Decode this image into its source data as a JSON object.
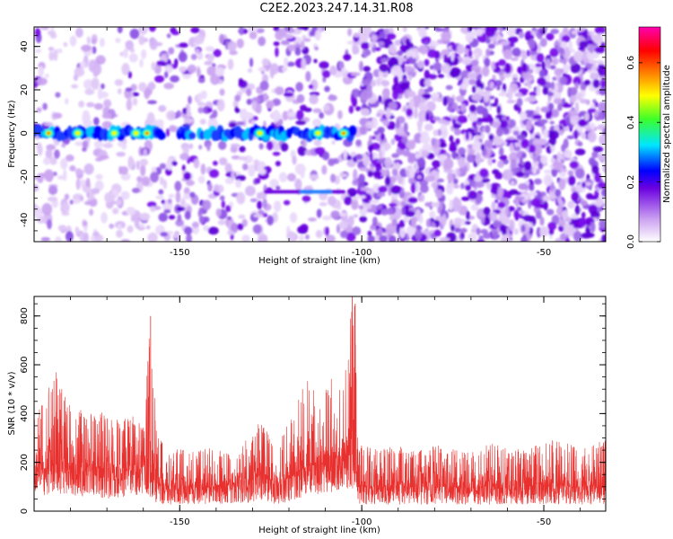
{
  "title": "C2E2.2023.247.14.31.R08",
  "colors": {
    "snr_line": "#e8302e",
    "axis": "#000000",
    "background": "#ffffff"
  },
  "chart_data": [
    {
      "type": "heatmap",
      "xlabel": "Height of straight line (km)",
      "ylabel": "Frequency (Hz)",
      "xlim": [
        -190,
        -33
      ],
      "ylim": [
        -50,
        49
      ],
      "xticks": [
        -150,
        -100,
        -50
      ],
      "yticks": [
        -40,
        -20,
        0,
        20,
        40
      ],
      "colorbar": {
        "label": "Normalized spectral amplitude",
        "range": [
          0,
          0.72
        ],
        "ticks": [
          0.0,
          0.2,
          0.4,
          0.6
        ],
        "colormap": "white-purple-blue-cyan-green-yellow-red-magenta"
      },
      "features": [
        {
          "name": "strong band",
          "freq_hz": 0,
          "x_range": [
            -190,
            -102
          ],
          "max_amplitude": 0.6
        },
        {
          "name": "secondary band",
          "freq_hz": -27,
          "x_range": [
            -126,
            -105
          ],
          "max_amplitude": 0.2
        },
        {
          "name": "dense noise region",
          "x_range": [
            -102,
            -33
          ],
          "max_amplitude": 0.1
        }
      ]
    },
    {
      "type": "line",
      "xlabel": "Height of straight line (km)",
      "ylabel": "SNR (10 * v/v)",
      "xlim": [
        -190,
        -33
      ],
      "ylim": [
        0,
        880
      ],
      "xticks": [
        -150,
        -100,
        -50
      ],
      "yticks": [
        0,
        200,
        400,
        600,
        800
      ],
      "series_color": "#e8302e",
      "envelope": {
        "x": [
          -190,
          -187,
          -184,
          -181,
          -178,
          -175,
          -172,
          -169,
          -166,
          -163,
          -160,
          -158,
          -157,
          -156,
          -155,
          -152,
          -149,
          -146,
          -143,
          -140,
          -137,
          -134,
          -131,
          -128,
          -126,
          -124,
          -122,
          -119,
          -116,
          -114,
          -112,
          -110,
          -108,
          -106,
          -104,
          -103,
          -102,
          -101,
          -100,
          -97,
          -94,
          -90,
          -85,
          -80,
          -75,
          -70,
          -65,
          -60,
          -55,
          -50,
          -45,
          -40,
          -35,
          -33
        ],
        "y_max": [
          400,
          470,
          590,
          450,
          430,
          400,
          410,
          380,
          370,
          400,
          350,
          800,
          500,
          350,
          300,
          250,
          270,
          240,
          260,
          250,
          240,
          260,
          320,
          380,
          330,
          280,
          300,
          400,
          520,
          560,
          480,
          500,
          560,
          590,
          620,
          880,
          850,
          280,
          270,
          260,
          260,
          270,
          250,
          270,
          260,
          240,
          280,
          260,
          250,
          280,
          300,
          250,
          280,
          310
        ],
        "y_base": [
          160,
          170,
          180,
          175,
          170,
          165,
          170,
          160,
          160,
          165,
          170,
          180,
          140,
          110,
          100,
          100,
          100,
          105,
          100,
          105,
          105,
          110,
          120,
          140,
          130,
          110,
          115,
          140,
          170,
          190,
          185,
          190,
          200,
          205,
          220,
          240,
          220,
          110,
          100,
          95,
          95,
          100,
          95,
          100,
          95,
          95,
          100,
          95,
          95,
          100,
          100,
          95,
          100,
          100
        ],
        "y_min": [
          20,
          40,
          50,
          40,
          30,
          40,
          30,
          20,
          30,
          40,
          30,
          30,
          20,
          10,
          10,
          10,
          10,
          10,
          10,
          10,
          10,
          10,
          10,
          20,
          10,
          10,
          10,
          20,
          30,
          40,
          40,
          40,
          50,
          50,
          60,
          60,
          50,
          10,
          10,
          10,
          10,
          10,
          10,
          10,
          10,
          10,
          10,
          10,
          10,
          10,
          10,
          10,
          10,
          10
        ]
      }
    }
  ]
}
